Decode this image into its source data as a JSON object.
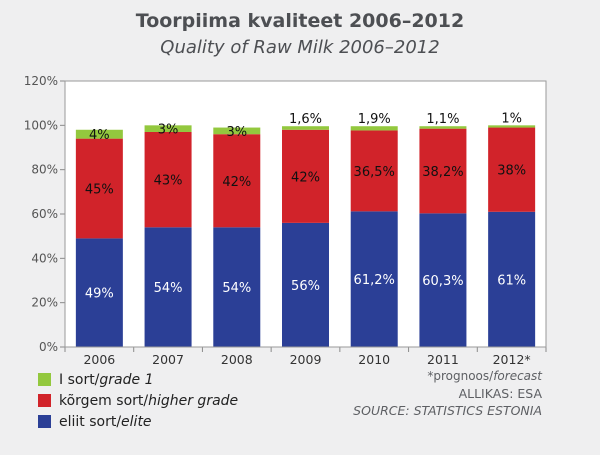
{
  "title": "Toorpiima kvaliteet 2006–2012",
  "subtitle": "Quality of Raw Milk 2006–2012",
  "chart_data": {
    "type": "bar",
    "stacked": true,
    "categories": [
      "2006",
      "2007",
      "2008",
      "2009",
      "2010",
      "2011",
      "2012*"
    ],
    "ylim": [
      0,
      120
    ],
    "yticks": [
      "0%",
      "20%",
      "40%",
      "60%",
      "80%",
      "100%",
      "120%"
    ],
    "grid": false,
    "legend_position": "bottom-left",
    "series": [
      {
        "name": "eliit sort/elite",
        "color": "#2b3f96",
        "values": [
          49,
          54,
          54,
          56,
          61.2,
          60.3,
          61
        ],
        "labels": [
          "49%",
          "54%",
          "54%",
          "56%",
          "61,2%",
          "60,3%",
          "61%"
        ]
      },
      {
        "name": "kõrgem sort/higher grade",
        "color": "#d1232a",
        "values": [
          45,
          43,
          42,
          42,
          36.5,
          38.2,
          38
        ],
        "labels": [
          "45%",
          "43%",
          "42%",
          "42%",
          "36,5%",
          "38,2%",
          "38%"
        ]
      },
      {
        "name": "I sort/grade 1",
        "color": "#93c83e",
        "values": [
          4,
          3,
          3,
          1.6,
          1.9,
          1.1,
          1
        ],
        "labels": [
          "4%",
          "3%",
          "3%",
          "1,6%",
          "1,9%",
          "1,1%",
          "1%"
        ]
      }
    ]
  },
  "legend": [
    {
      "name": "I sort/",
      "italic": "grade 1",
      "color": "#93c83e"
    },
    {
      "name": "kõrgem sort/",
      "italic": "higher grade",
      "color": "#d1232a"
    },
    {
      "name": "eliit sort/",
      "italic": "elite",
      "color": "#2b3f96"
    }
  ],
  "notes": {
    "forecast": "*prognoos/forecast",
    "source_et": "ALLIKAS: ESA",
    "source_en": "SOURCE: STATISTICS ESTONIA"
  }
}
